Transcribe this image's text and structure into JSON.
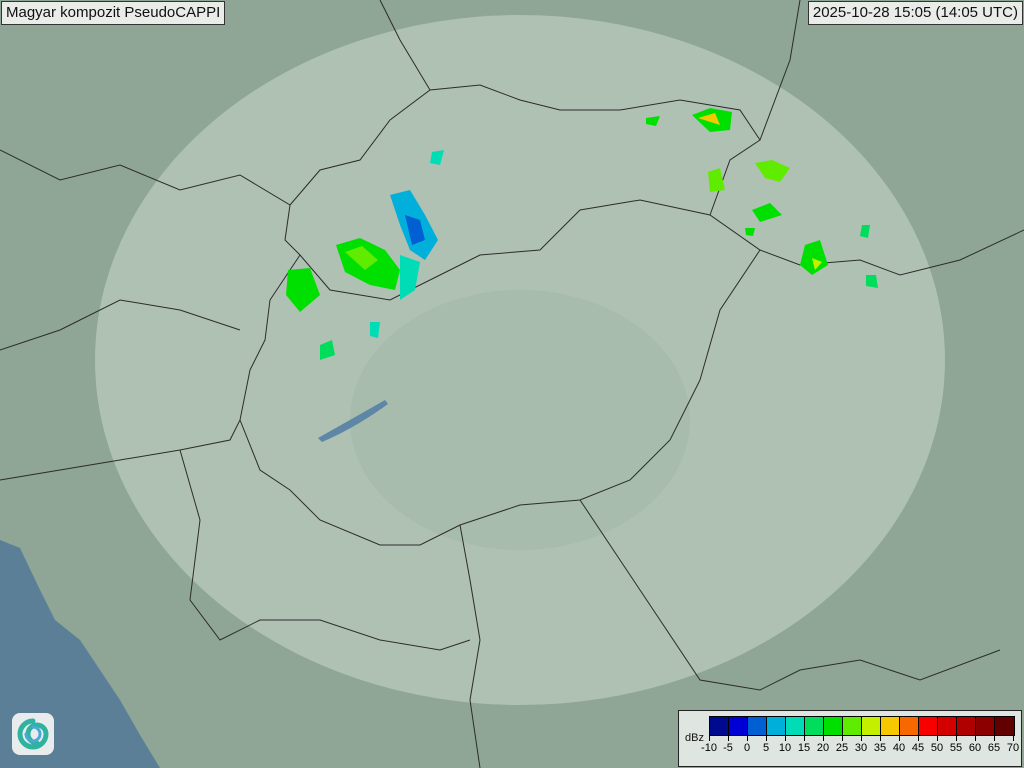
{
  "header": {
    "title": "Magyar kompozit  PseudoCAPPI",
    "timestamp": "2025-10-28 15:05 (14:05 UTC)"
  },
  "logo": {
    "icon": "swirl-logo-icon"
  },
  "legend": {
    "unit": "dBz",
    "ticks": [
      "-10",
      "-5",
      "0",
      "5",
      "10",
      "15",
      "20",
      "25",
      "30",
      "35",
      "40",
      "45",
      "50",
      "55",
      "60",
      "65",
      "70"
    ],
    "colors": [
      "#000a8e",
      "#0000d6",
      "#005fd2",
      "#00b0da",
      "#00dcb6",
      "#00dc5c",
      "#00e000",
      "#60ec00",
      "#c4f000",
      "#f6c800",
      "#f86800",
      "#f80000",
      "#d40000",
      "#b00000",
      "#8c0000",
      "#620000"
    ]
  },
  "map": {
    "land_color": "#8fa596",
    "coverage_color": "#b7c8bd",
    "sea_color": "#5b7f96",
    "border_color": "#2c2c2c"
  }
}
